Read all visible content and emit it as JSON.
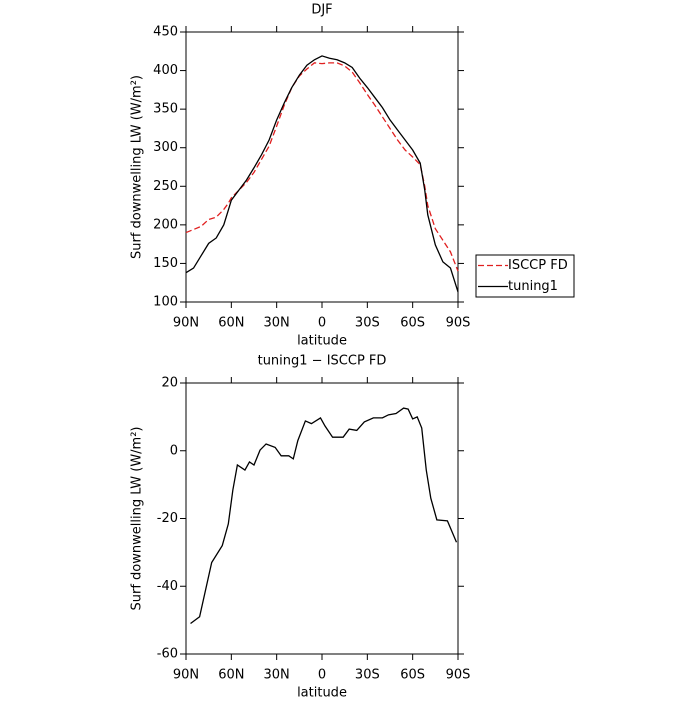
{
  "chart_data": [
    {
      "type": "line",
      "title": "DJF",
      "xlabel": "latitude",
      "ylabel": "Surf downwelling LW (W/m²)",
      "legend": "right",
      "x": [
        90,
        85,
        80,
        75,
        70,
        65,
        62,
        60,
        55,
        50,
        45,
        40,
        35,
        30,
        25,
        20,
        15,
        10,
        5,
        0,
        -5,
        -10,
        -15,
        -20,
        -25,
        -30,
        -35,
        -40,
        -45,
        -50,
        -55,
        -60,
        -65,
        -68,
        -70,
        -75,
        -80,
        -85,
        -90
      ],
      "series": [
        {
          "name": "ISCCP FD",
          "color": "#e02020",
          "style": "dashed",
          "values": [
            190,
            194,
            198,
            207,
            210,
            220,
            228,
            235,
            245,
            255,
            268,
            285,
            302,
            328,
            355,
            378,
            393,
            402,
            410,
            409,
            410,
            410,
            406,
            398,
            384,
            369,
            355,
            340,
            325,
            310,
            297,
            288,
            278,
            250,
            225,
            195,
            180,
            165,
            140
          ]
        },
        {
          "name": "tuning1",
          "color": "#000000",
          "style": "solid",
          "values": [
            138,
            144,
            160,
            176,
            183,
            200,
            219,
            232,
            245,
            258,
            274,
            291,
            310,
            336,
            358,
            378,
            394,
            407,
            414,
            419,
            416,
            414,
            410,
            404,
            390,
            378,
            365,
            352,
            336,
            323,
            310,
            297,
            280,
            245,
            213,
            174,
            152,
            144,
            113
          ]
        }
      ],
      "xlim": [
        90,
        -90
      ],
      "xticks": [
        {
          "value": 90,
          "label": "90N"
        },
        {
          "value": 60,
          "label": "60N"
        },
        {
          "value": 30,
          "label": "30N"
        },
        0,
        {
          "value": -30,
          "label": "30S"
        },
        {
          "value": -60,
          "label": "60S"
        },
        {
          "value": -90,
          "label": "90S"
        }
      ],
      "ylim": [
        100,
        450
      ],
      "yticks": [
        100,
        150,
        200,
        250,
        300,
        350,
        400,
        450
      ]
    },
    {
      "type": "line",
      "title": "tuning1 − ISCCP FD",
      "xlabel": "latitude",
      "ylabel": "Surf downwelling LW (W/m²)",
      "x": [
        87,
        81,
        73,
        66,
        62,
        59,
        56,
        51,
        48,
        45,
        41,
        37,
        31,
        27,
        22,
        19,
        16,
        11,
        7,
        1,
        -2,
        -7,
        -14,
        -18,
        -23,
        -28,
        -34,
        -40,
        -44,
        -49,
        -54,
        -57,
        -60,
        -63,
        -66,
        -69,
        -72,
        -76,
        -83,
        -89
      ],
      "series": [
        {
          "color": "#000000",
          "style": "solid",
          "values": [
            -51,
            -49,
            -33,
            -28,
            -21.6,
            -11.6,
            -4.2,
            -5.7,
            -3.3,
            -4.2,
            0.2,
            2,
            1,
            -1.5,
            -1.5,
            -2.4,
            3,
            8.8,
            8,
            9.7,
            7.3,
            4,
            4,
            6.4,
            6,
            8.5,
            9.7,
            9.7,
            10.6,
            11,
            12.6,
            12.3,
            9.4,
            10,
            6.7,
            -5.7,
            -14,
            -20.4,
            -20.7,
            -27
          ]
        }
      ],
      "xlim": [
        90,
        -90
      ],
      "xticks": [
        {
          "value": 90,
          "label": "90N"
        },
        {
          "value": 60,
          "label": "60N"
        },
        {
          "value": 30,
          "label": "30N"
        },
        0,
        {
          "value": -30,
          "label": "30S"
        },
        {
          "value": -60,
          "label": "60S"
        },
        {
          "value": -90,
          "label": "90S"
        }
      ],
      "ylim": [
        -60,
        20
      ],
      "yticks": [
        -60,
        -40,
        -20,
        0,
        20
      ]
    }
  ]
}
